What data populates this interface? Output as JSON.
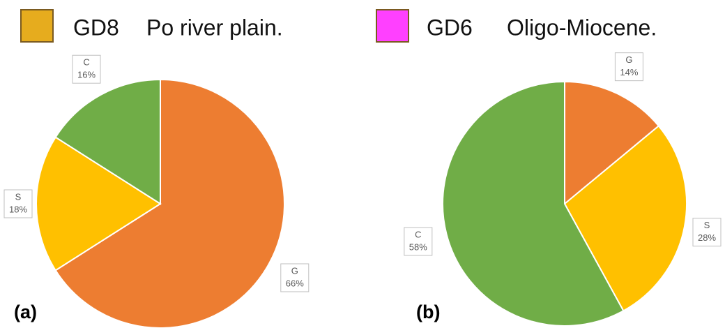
{
  "chart_data": [
    {
      "type": "pie",
      "legend_label": "GD8",
      "legend_description": "Po river plain.",
      "legend_color": "#e6ac1e",
      "panel_label": "(a)",
      "categories": [
        "G",
        "S",
        "C"
      ],
      "values": [
        66,
        18,
        16
      ],
      "value_labels": [
        "66%",
        "18%",
        "16%"
      ],
      "colors": [
        "#ed7d31",
        "#ffc000",
        "#70ad47"
      ]
    },
    {
      "type": "pie",
      "legend_label": "GD6",
      "legend_description": "Oligo-Miocene.",
      "legend_color": "#ff40ff",
      "panel_label": "(b)",
      "categories": [
        "G",
        "S",
        "C"
      ],
      "values": [
        14,
        28,
        58
      ],
      "value_labels": [
        "14%",
        "28%",
        "58%"
      ],
      "colors": [
        "#ed7d31",
        "#ffc000",
        "#70ad47"
      ]
    }
  ]
}
